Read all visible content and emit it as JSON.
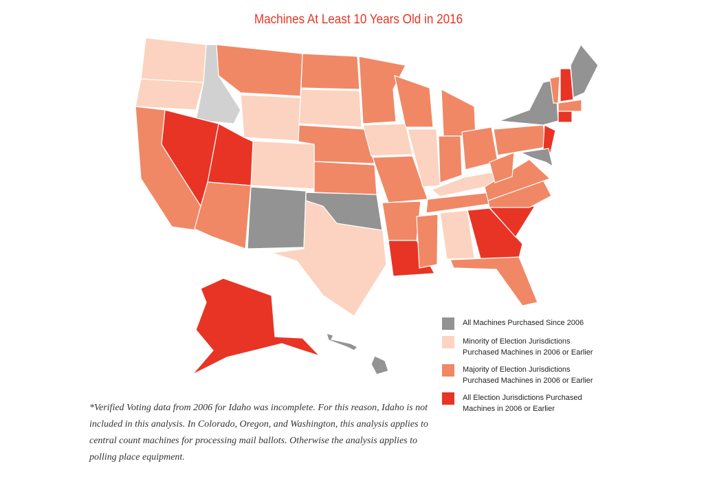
{
  "title": "Machines At Least 10 Years Old in 2016",
  "legend": [
    {
      "label": "All Machines Purchased Since 2006",
      "color": "#939393"
    },
    {
      "label": "Minority of Election Jurisdictions Purchased Machines in 2006 or Earlier",
      "color": "#fcd3c0"
    },
    {
      "label": "Majority of Election Jurisdictions Purchased Machines in 2006 or Earlier",
      "color": "#f08866"
    },
    {
      "label": "All Election Jurisdictions Purchased Machines in 2006 or Earlier",
      "color": "#e83425"
    }
  ],
  "footnote": "*Verified Voting data from 2006 for Idaho was incomplete. For this reason, Idaho is not included in this analysis. In Colorado, Oregon, and Washington, this analysis applies to central count machines for processing mail ballots. Otherwise the analysis applies to polling place equipment."
}
